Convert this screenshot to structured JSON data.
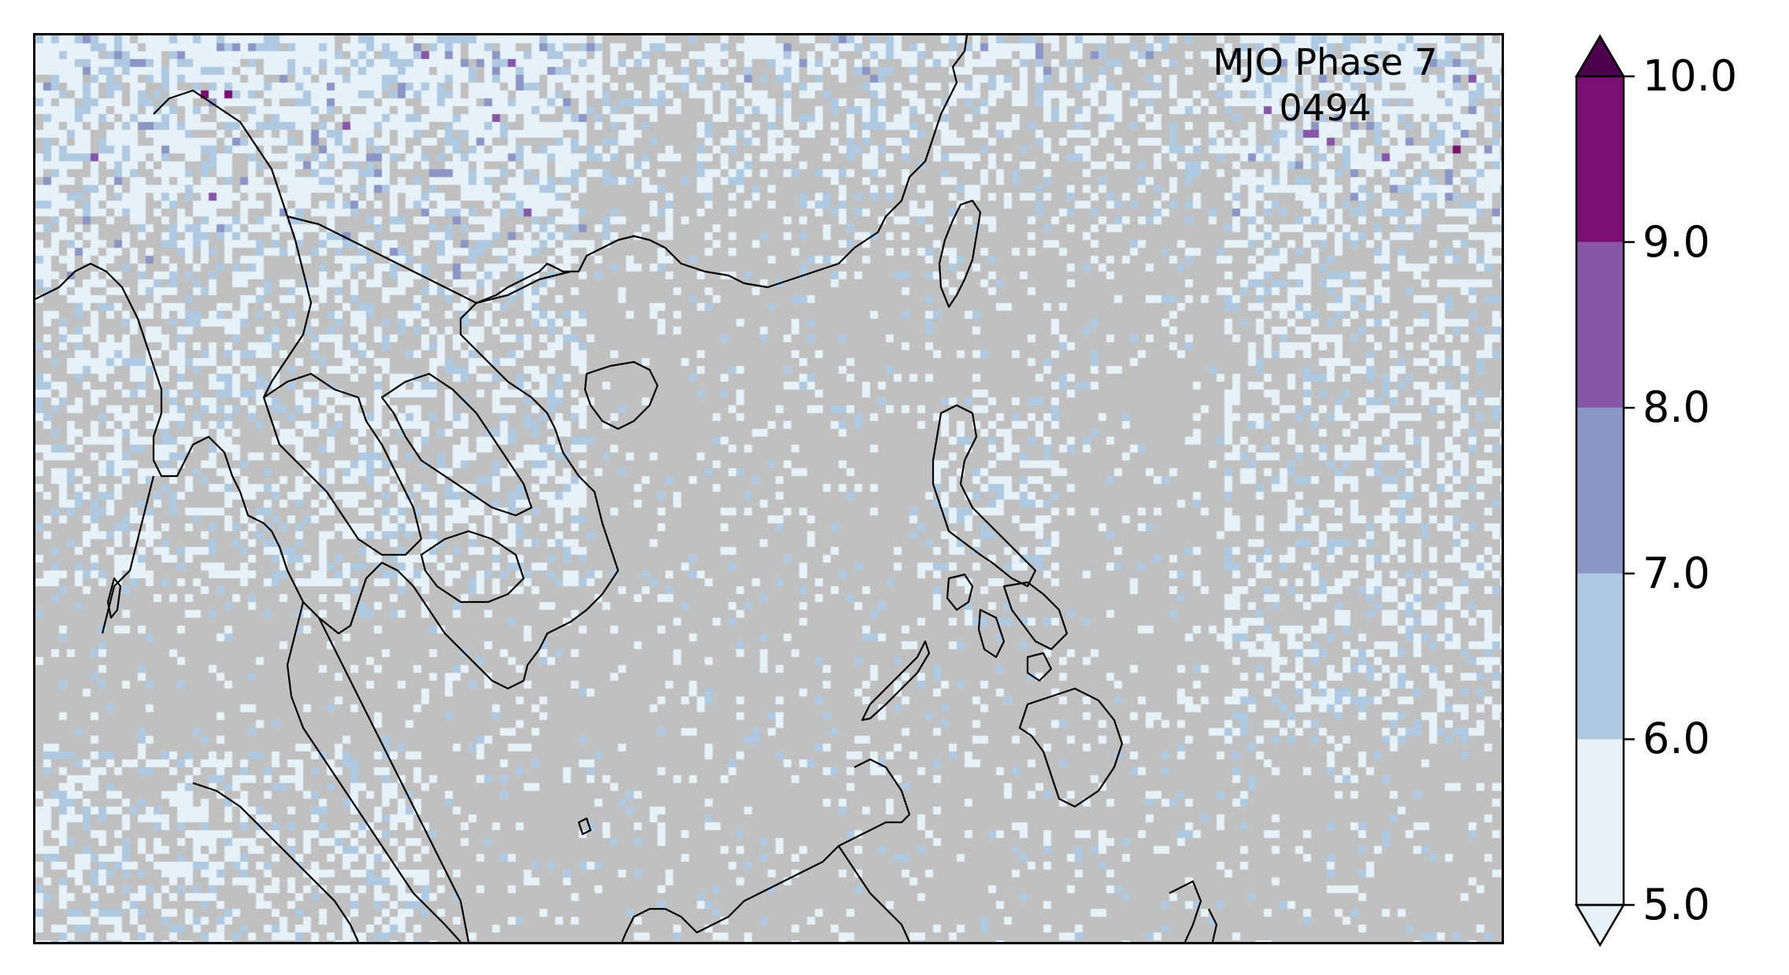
{
  "map": {
    "title": "MJO Phase 7",
    "subtitle": "0494",
    "region": "Southeast Asia / South China Sea",
    "ocean_color": "#c0c0c0",
    "coastline_color": "#000000"
  },
  "colorbar": {
    "ticks": [
      "5.0",
      "6.0",
      "7.0",
      "8.0",
      "9.0",
      "10.0"
    ],
    "bins": [
      {
        "from": 5.0,
        "to": 6.0,
        "color": "#e6f1f8"
      },
      {
        "from": 6.0,
        "to": 7.0,
        "color": "#b0c9e2"
      },
      {
        "from": 7.0,
        "to": 8.0,
        "color": "#8c96c6"
      },
      {
        "from": 8.0,
        "to": 9.0,
        "color": "#8856a7"
      },
      {
        "from": 9.0,
        "to": 10.0,
        "color": "#7b0e72"
      }
    ],
    "extend_min_color": "#e6f1f8",
    "extend_max_color": "#4d004b",
    "extend": "both"
  }
}
